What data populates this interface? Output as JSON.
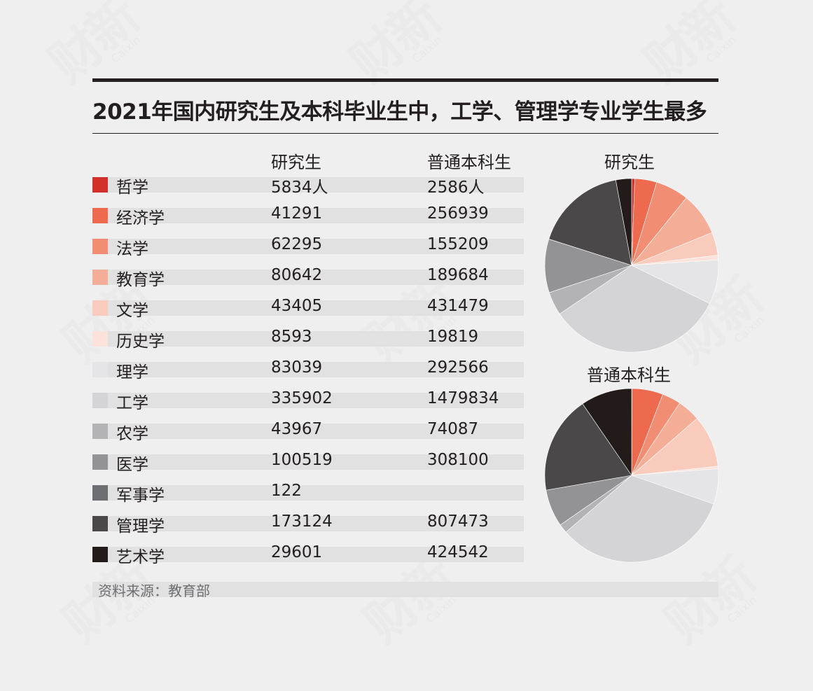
{
  "title": "2021年国内研究生及本科毕业生中，工学、管理学专业学生最多",
  "watermark": {
    "cn": "财新",
    "en": "Caixin"
  },
  "source": "资料来源：教育部",
  "chart_data": {
    "type": "table",
    "columns": [
      "研究生",
      "普通本科生"
    ],
    "rows": [
      {
        "name": "哲学",
        "color": "#d2302a",
        "grad": "5834人",
        "ug": "2586人"
      },
      {
        "name": "经济学",
        "color": "#ee6a4f",
        "grad": "41291",
        "ug": "256939"
      },
      {
        "name": "法学",
        "color": "#f08d73",
        "grad": "62295",
        "ug": "155209"
      },
      {
        "name": "教育学",
        "color": "#f4ad96",
        "grad": "80642",
        "ug": "189684"
      },
      {
        "name": "文学",
        "color": "#f8cbbd",
        "grad": "43405",
        "ug": "431479"
      },
      {
        "name": "历史学",
        "color": "#fbe3dc",
        "grad": "8593",
        "ug": "19819"
      },
      {
        "name": "理学",
        "color": "#e5e5e7",
        "grad": "83039",
        "ug": "292566"
      },
      {
        "name": "工学",
        "color": "#d4d4d6",
        "grad": "335902",
        "ug": "1479834"
      },
      {
        "name": "农学",
        "color": "#b3b3b5",
        "grad": "43967",
        "ug": "74087"
      },
      {
        "name": "医学",
        "color": "#939395",
        "grad": "100519",
        "ug": "308100"
      },
      {
        "name": "军事学",
        "color": "#6d6e71",
        "grad": "122",
        "ug": ""
      },
      {
        "name": "管理学",
        "color": "#4a4848",
        "grad": "173124",
        "ug": "807473"
      },
      {
        "name": "艺术学",
        "color": "#231a1a",
        "grad": "29601",
        "ug": "424542"
      }
    ],
    "pies": [
      {
        "title": "研究生",
        "values": [
          5834,
          41291,
          62295,
          80642,
          43405,
          8593,
          83039,
          335902,
          43967,
          100519,
          122,
          173124,
          29601
        ]
      },
      {
        "title": "普通本科生",
        "values": [
          2586,
          256939,
          155209,
          189684,
          431479,
          19819,
          292566,
          1479834,
          74087,
          308100,
          0,
          807473,
          424542
        ]
      }
    ]
  }
}
